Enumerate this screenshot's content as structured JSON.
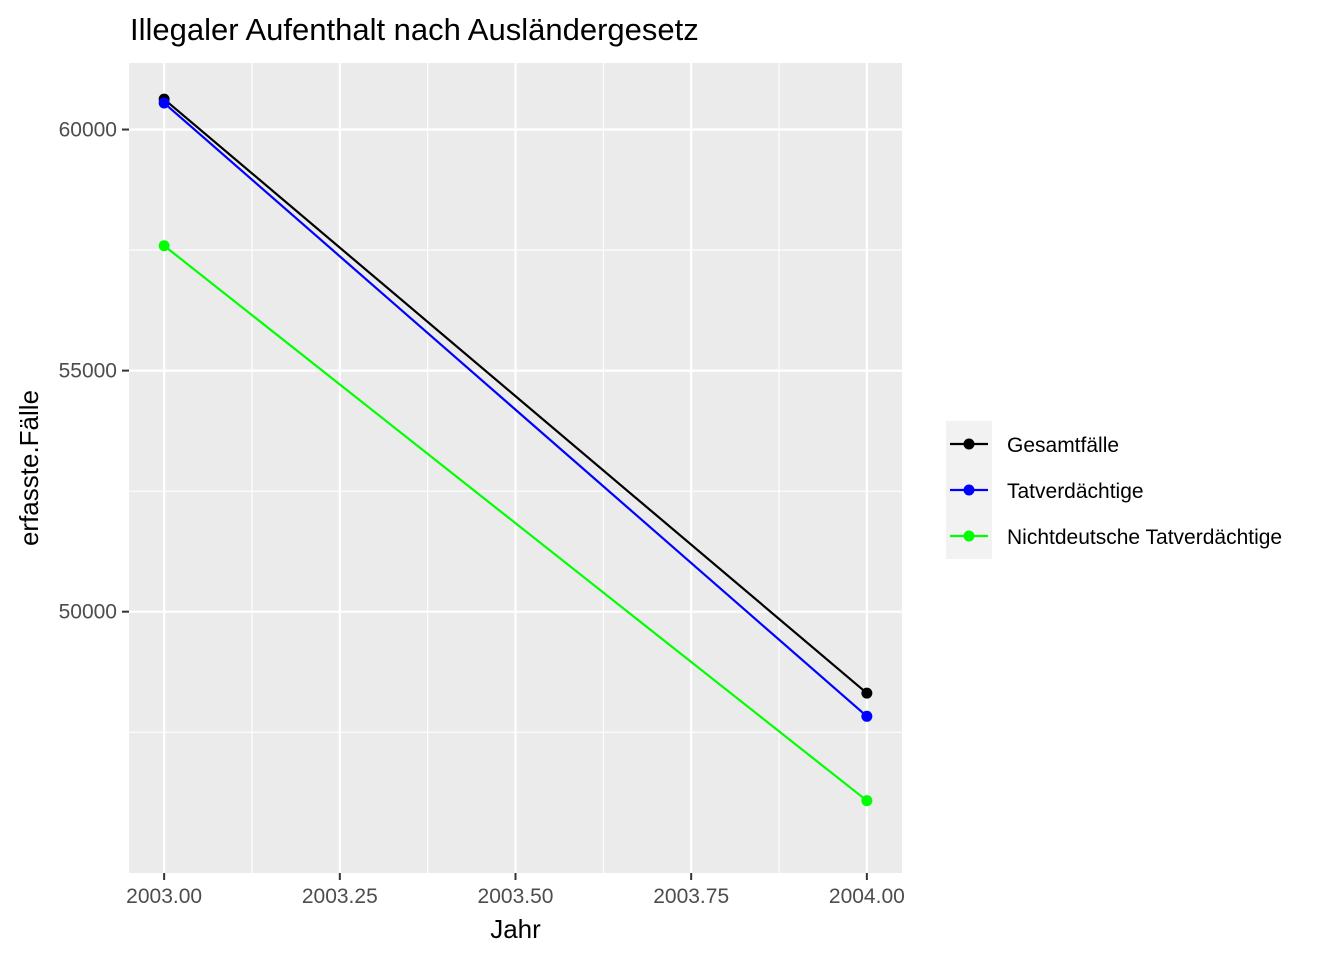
{
  "chart_data": {
    "type": "line",
    "title": "Illegaler Aufenthalt nach Ausländergesetz",
    "xlabel": "Jahr",
    "ylabel": "erfasste.Fälle",
    "x": [
      2003,
      2004
    ],
    "xlim": [
      2002.95,
      2004.05
    ],
    "ylim": [
      44580,
      61380
    ],
    "x_ticks": [
      2003.0,
      2003.25,
      2003.5,
      2003.75,
      2004.0
    ],
    "x_tick_labels": [
      "2003.00",
      "2003.25",
      "2003.50",
      "2003.75",
      "2004.00"
    ],
    "y_ticks": [
      50000,
      55000,
      60000
    ],
    "y_tick_labels": [
      "50000",
      "55000",
      "60000"
    ],
    "grid": true,
    "legend_position": "right",
    "series": [
      {
        "name": "Gesamtfälle",
        "color": "#000000",
        "values": [
          60630,
          48310
        ]
      },
      {
        "name": "Tatverdächtige",
        "color": "#0000ff",
        "values": [
          60550,
          47830
        ]
      },
      {
        "name": "Nichtdeutsche Tatverdächtige",
        "color": "#00ff00",
        "values": [
          57590,
          46080
        ]
      }
    ]
  }
}
